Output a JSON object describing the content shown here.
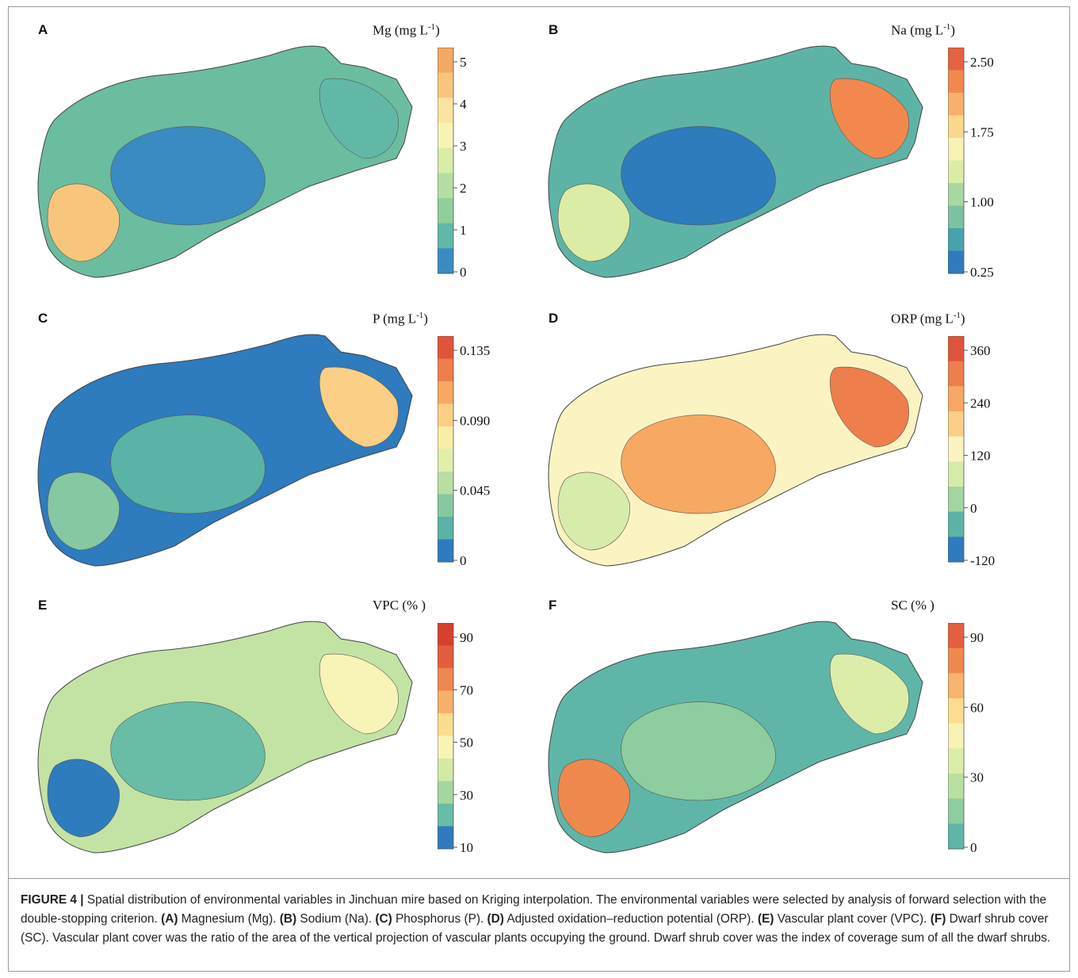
{
  "figure": {
    "label": "FIGURE 4 |",
    "caption_parts": [
      {
        "t": "Spatial distribution of environmental variables in Jinchuan mire based on Kriging interpolation. The environmental variables were selected by analysis of forward selection with the double-stopping criterion. ",
        "b": false
      },
      {
        "t": "(A)",
        "b": true
      },
      {
        "t": " Magnesium (Mg). ",
        "b": false
      },
      {
        "t": "(B)",
        "b": true
      },
      {
        "t": " Sodium (Na). ",
        "b": false
      },
      {
        "t": "(C)",
        "b": true
      },
      {
        "t": " Phosphorus (P). ",
        "b": false
      },
      {
        "t": "(D)",
        "b": true
      },
      {
        "t": " Adjusted oxidation–reduction potential (ORP). ",
        "b": false
      },
      {
        "t": "(E)",
        "b": true
      },
      {
        "t": " Vascular plant cover (VPC). ",
        "b": false
      },
      {
        "t": "(F)",
        "b": true
      },
      {
        "t": " Dwarf shrub cover (SC). Vascular plant cover was the ratio of the area of the vertical projection of vascular plants occupying the ground. Dwarf shrub cover was the index of coverage sum of all the dwarf shrubs.",
        "b": false
      }
    ]
  },
  "panels": [
    {
      "letter": "A",
      "legend_title": "Mg (mg L",
      "legend_sup": "-1",
      "legend_close": ")",
      "ticks": [
        "5",
        "4",
        "3",
        "2",
        "1",
        "0"
      ],
      "colors": [
        "#f2a964",
        "#f7c67c",
        "#fbe3a0",
        "#f6f3b4",
        "#d9ecaa",
        "#b5dea3",
        "#8fcf9c",
        "#61b8a7",
        "#3a8bc1"
      ],
      "base": "#6bbd9f",
      "blobs": [
        "#3a8bc1",
        "#61b8a7",
        "#f7c67c"
      ]
    },
    {
      "letter": "B",
      "legend_title": "Na (mg L",
      "legend_sup": "-1",
      "legend_close": ")",
      "ticks": [
        "2.50",
        "1.75",
        "1.00",
        "0.25"
      ],
      "colors": [
        "#e66240",
        "#f2884e",
        "#f7b16b",
        "#fcd88d",
        "#f8f2b4",
        "#dbeca6",
        "#a9d8a0",
        "#7cc2a2",
        "#46a3ae",
        "#2e7bbd"
      ],
      "base": "#5db4a6",
      "blobs": [
        "#2e7bbd",
        "#f2884e",
        "#dbeca6"
      ]
    },
    {
      "letter": "C",
      "legend_title": "P (mg L",
      "legend_sup": "-1",
      "legend_close": ")",
      "ticks": [
        "0.135",
        "0.090",
        "0.045",
        "0"
      ],
      "colors": [
        "#e0553a",
        "#ee7e4b",
        "#f7a862",
        "#fbcf85",
        "#f9eda8",
        "#e2efaa",
        "#b8dea2",
        "#86c8a2",
        "#5ab3a6",
        "#2e7bbd"
      ],
      "base": "#2e7bbd",
      "blobs": [
        "#5ab3a6",
        "#fbcf85",
        "#86c8a2"
      ]
    },
    {
      "letter": "D",
      "legend_title": "ORP (mg L",
      "legend_sup": "-1",
      "legend_close": ")",
      "ticks": [
        "360",
        "240",
        "120",
        "0",
        "-120"
      ],
      "colors": [
        "#e0553a",
        "#ee7e4b",
        "#f7a862",
        "#fbcf85",
        "#fbf4c2",
        "#d7ebab",
        "#a2d59f",
        "#5db4a6",
        "#2e7bbd"
      ],
      "base": "#fbf4c2",
      "blobs": [
        "#f7a862",
        "#ee7e4b",
        "#d7ebab"
      ]
    },
    {
      "letter": "E",
      "legend_title": "VPC (% )",
      "legend_sup": "",
      "legend_close": "",
      "ticks": [
        "90",
        "70",
        "50",
        "30",
        "10"
      ],
      "colors": [
        "#d7402f",
        "#e25e3f",
        "#ee864f",
        "#f7b06a",
        "#fbdd8f",
        "#f8f3b6",
        "#d3eaa6",
        "#a6d6a0",
        "#69bca5",
        "#2e7bbd"
      ],
      "base": "#c3e3a4",
      "blobs": [
        "#69bca5",
        "#f8f3b6",
        "#2e7bbd"
      ]
    },
    {
      "letter": "F",
      "legend_title": "SC (% )",
      "legend_sup": "",
      "legend_close": "",
      "ticks": [
        "90",
        "60",
        "30",
        "0"
      ],
      "colors": [
        "#e45f3d",
        "#f0884e",
        "#f8b46c",
        "#fcdc8e",
        "#f8f2b5",
        "#dcedaa",
        "#b9dfa3",
        "#8dcd9f",
        "#5fb6a8"
      ],
      "base": "#5fb6a8",
      "blobs": [
        "#8dcd9f",
        "#dcedaa",
        "#f0884e"
      ]
    }
  ]
}
